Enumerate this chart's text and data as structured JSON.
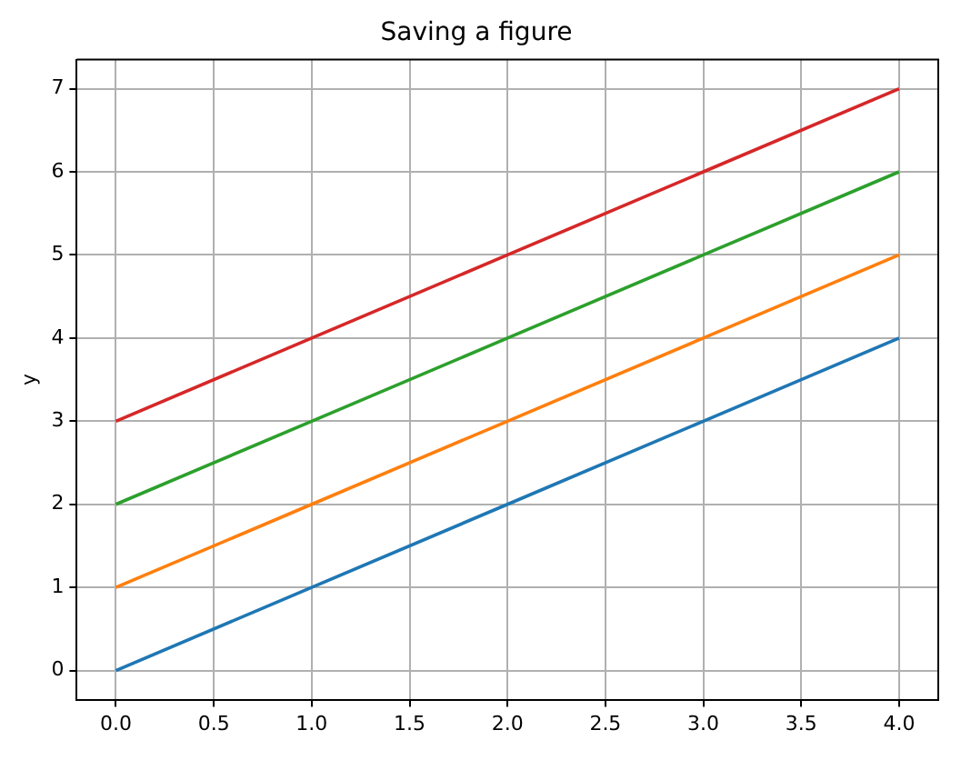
{
  "chart_data": {
    "type": "line",
    "title": "Saving a figure",
    "ylabel": "y",
    "x": [
      0,
      1,
      2,
      3,
      4
    ],
    "series": [
      {
        "color": "#1f77b4",
        "values": [
          0,
          1,
          2,
          3,
          4
        ]
      },
      {
        "color": "#ff7f0e",
        "values": [
          1,
          2,
          3,
          4,
          5
        ]
      },
      {
        "color": "#2ca02c",
        "values": [
          2,
          3,
          4,
          5,
          6
        ]
      },
      {
        "color": "#d62728",
        "values": [
          3,
          4,
          5,
          6,
          7
        ]
      }
    ],
    "xlim": [
      -0.2,
      4.2
    ],
    "xticks": [
      {
        "value": 0,
        "label": "0.0"
      },
      {
        "value": 0.5,
        "label": "0.5"
      },
      {
        "value": 1,
        "label": "1.0"
      },
      {
        "value": 1.5,
        "label": "1.5"
      },
      {
        "value": 2,
        "label": "2.0"
      },
      {
        "value": 2.5,
        "label": "2.5"
      },
      {
        "value": 3,
        "label": "3.0"
      },
      {
        "value": 3.5,
        "label": "3.5"
      },
      {
        "value": 4,
        "label": "4.0"
      }
    ],
    "ylim": [
      -0.35,
      7.35
    ],
    "yticks": [
      0,
      1,
      2,
      3,
      4,
      5,
      6,
      7
    ],
    "grid": true,
    "legend": false,
    "marker": "none",
    "line_style": "solid"
  }
}
